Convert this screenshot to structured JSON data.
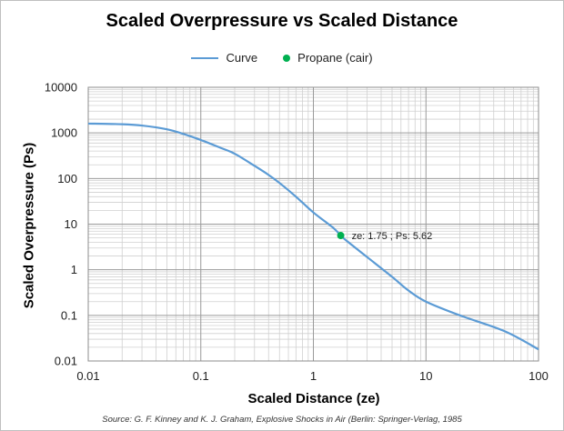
{
  "chart_data": {
    "type": "line",
    "title": "Scaled Overpressure vs Scaled Distance",
    "xlabel": "Scaled Distance (ze)",
    "ylabel": "Scaled Overpressure (Ps)",
    "x_scale": "log",
    "y_scale": "log",
    "xlim": [
      0.01,
      100
    ],
    "ylim": [
      0.01,
      10000
    ],
    "x_ticks": [
      "0.01",
      "0.1",
      "1",
      "10",
      "100"
    ],
    "y_ticks": [
      "0.01",
      "0.1",
      "1",
      "10",
      "100",
      "1000",
      "10000"
    ],
    "grid": true,
    "legend_position": "top",
    "series": [
      {
        "name": "Curve",
        "color": "#5B9BD5",
        "x": [
          0.01,
          0.02,
          0.03,
          0.05,
          0.07,
          0.1,
          0.15,
          0.2,
          0.3,
          0.4,
          0.5,
          0.7,
          1,
          1.5,
          1.75,
          2,
          3,
          5,
          7,
          10,
          20,
          50,
          100
        ],
        "y": [
          1600,
          1550,
          1450,
          1200,
          950,
          700,
          470,
          350,
          190,
          120,
          80,
          40,
          18,
          8.3,
          5.62,
          4.2,
          1.9,
          0.7,
          0.35,
          0.2,
          0.1,
          0.045,
          0.018
        ]
      },
      {
        "name": "Propane (cair)",
        "color": "#00B050",
        "type": "scatter",
        "x": [
          1.75
        ],
        "y": [
          5.62
        ]
      }
    ],
    "annotations": [
      {
        "text": "ze: 1.75 ; Ps: 5.62",
        "x": 1.75,
        "y": 5.62
      }
    ]
  },
  "source_note": "Source: G. F. Kinney and K. J. Graham, Explosive Shocks in Air (Berlin: Springer-Verlag, 1985"
}
